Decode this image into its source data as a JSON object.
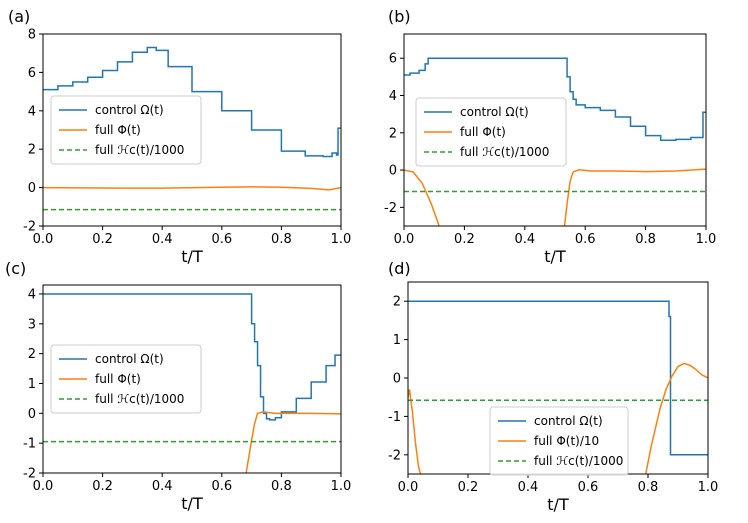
{
  "colors": {
    "control": "#1f77b4",
    "full": "#ff7f0e",
    "hamiltonian": "#2ca02c"
  },
  "chart_data": [
    {
      "panel_label": "(a)",
      "type": "line",
      "xlabel": "t/T",
      "xlim": [
        0,
        1
      ],
      "ylim": [
        -2,
        8
      ],
      "xticks": [
        "0.0",
        "0.2",
        "0.4",
        "0.6",
        "0.8",
        "1.0"
      ],
      "yticks": [
        "-2",
        "0",
        "2",
        "4",
        "6",
        "8"
      ],
      "legend_position": "lower-left",
      "series": [
        {
          "name": "control Ω(t)",
          "style": "step",
          "color": "#1f77b4",
          "x": [
            0,
            0.05,
            0.1,
            0.15,
            0.2,
            0.25,
            0.3,
            0.35,
            0.38,
            0.42,
            0.5,
            0.6,
            0.7,
            0.8,
            0.88,
            0.94,
            0.97,
            0.985,
            0.99,
            1.0
          ],
          "y": [
            5.1,
            5.3,
            5.5,
            5.75,
            6.1,
            6.55,
            7.05,
            7.3,
            7.15,
            6.3,
            5.0,
            4.0,
            3.0,
            1.9,
            1.65,
            1.62,
            1.8,
            1.7,
            3.1,
            3.1
          ]
        },
        {
          "name": "full Φ(t)",
          "style": "line",
          "color": "#ff7f0e",
          "x": [
            0,
            0.2,
            0.4,
            0.6,
            0.7,
            0.8,
            0.9,
            0.96,
            1.0
          ],
          "y": [
            0.0,
            -0.02,
            -0.03,
            0.02,
            0.04,
            0.02,
            -0.04,
            -0.12,
            0.0
          ]
        },
        {
          "name": "full ℋc(t)/1000",
          "style": "dashed",
          "color": "#2ca02c",
          "x": [
            0,
            1
          ],
          "y": [
            -1.15,
            -1.15
          ]
        }
      ]
    },
    {
      "panel_label": "(b)",
      "type": "line",
      "xlabel": "t/T",
      "xlim": [
        0,
        1
      ],
      "ylim": [
        -3,
        7.3
      ],
      "xticks": [
        "0.0",
        "0.2",
        "0.4",
        "0.6",
        "0.8",
        "1.0"
      ],
      "yticks": [
        "-2",
        "0",
        "2",
        "4",
        "6"
      ],
      "legend_position": "center-right",
      "series": [
        {
          "name": "control Ω(t)",
          "style": "step",
          "color": "#1f77b4",
          "x": [
            0,
            0.02,
            0.05,
            0.07,
            0.08,
            0.53,
            0.54,
            0.55,
            0.56,
            0.57,
            0.6,
            0.65,
            0.7,
            0.75,
            0.8,
            0.85,
            0.9,
            0.95,
            0.99,
            1.0
          ],
          "y": [
            5.1,
            5.2,
            5.35,
            5.7,
            6.0,
            6.0,
            5.0,
            4.2,
            3.8,
            3.5,
            3.35,
            3.2,
            2.85,
            2.35,
            1.85,
            1.6,
            1.65,
            1.75,
            3.1,
            3.1
          ]
        },
        {
          "name": "full Φ(t)",
          "style": "line",
          "color": "#ff7f0e",
          "x": [
            0,
            0.03,
            0.06,
            0.09,
            0.11,
            0.12
          ],
          "y": [
            0.0,
            -0.1,
            -0.7,
            -1.8,
            -2.7,
            -3.2
          ],
          "x2": [
            0.53,
            0.54,
            0.55,
            0.56,
            0.58,
            0.62,
            0.7,
            0.8,
            0.9,
            1.0
          ],
          "y2": [
            -3.2,
            -1.8,
            -0.6,
            -0.1,
            0.02,
            -0.05,
            -0.05,
            -0.08,
            -0.05,
            0.05
          ]
        },
        {
          "name": "full ℋc(t)/1000",
          "style": "dashed",
          "color": "#2ca02c",
          "x": [
            0,
            1
          ],
          "y": [
            -1.15,
            -1.15
          ]
        }
      ]
    },
    {
      "panel_label": "(c)",
      "type": "line",
      "xlabel": "t/T",
      "xlim": [
        0,
        1
      ],
      "ylim": [
        -2,
        4.3
      ],
      "xticks": [
        "0.0",
        "0.2",
        "0.4",
        "0.6",
        "0.8",
        "1.0"
      ],
      "yticks": [
        "-2",
        "-1",
        "0",
        "1",
        "2",
        "3",
        "4"
      ],
      "legend_position": "center-left",
      "series": [
        {
          "name": "control Ω(t)",
          "style": "step",
          "color": "#1f77b4",
          "x": [
            0,
            0.695,
            0.7,
            0.71,
            0.72,
            0.73,
            0.74,
            0.75,
            0.76,
            0.78,
            0.8,
            0.85,
            0.9,
            0.95,
            0.98,
            1.0
          ],
          "y": [
            4.0,
            4.0,
            3.0,
            2.4,
            1.6,
            0.55,
            0.0,
            -0.18,
            -0.22,
            -0.15,
            0.05,
            0.5,
            1.05,
            1.6,
            1.95,
            1.98
          ]
        },
        {
          "name": "full Φ(t)",
          "style": "line",
          "color": "#ff7f0e",
          "x": [
            0.68,
            0.69,
            0.7,
            0.71,
            0.72,
            0.74,
            0.78,
            0.85,
            0.9,
            1.0
          ],
          "y": [
            -2.1,
            -1.5,
            -0.9,
            -0.35,
            0.0,
            0.05,
            0.0,
            0.0,
            0.0,
            -0.02
          ]
        },
        {
          "name": "full ℋc(t)/1000",
          "style": "dashed",
          "color": "#2ca02c",
          "x": [
            0,
            1
          ],
          "y": [
            -0.95,
            -0.95
          ]
        }
      ]
    },
    {
      "panel_label": "(d)",
      "type": "line",
      "xlabel": "t/T",
      "xlim": [
        0,
        1
      ],
      "ylim": [
        -2.5,
        2.5
      ],
      "xticks": [
        "0.0",
        "0.2",
        "0.4",
        "0.6",
        "0.8",
        "1.0"
      ],
      "yticks": [
        "-2",
        "-1",
        "0",
        "1",
        "2"
      ],
      "legend_position": "bottom-center",
      "series": [
        {
          "name": "control Ω(t)",
          "style": "step",
          "color": "#1f77b4",
          "x": [
            0,
            0.86,
            0.87,
            0.875,
            1.0
          ],
          "y": [
            2.0,
            2.0,
            1.6,
            -2.0,
            -2.0
          ]
        },
        {
          "name": "full Φ(t)/10",
          "style": "line",
          "color": "#ff7f0e",
          "x": [
            0.0,
            0.005,
            0.015,
            0.025,
            0.035,
            0.045
          ],
          "y": [
            -0.5,
            -0.3,
            -0.9,
            -1.7,
            -2.3,
            -2.6
          ],
          "x2": [
            0.79,
            0.81,
            0.84,
            0.86,
            0.88,
            0.9,
            0.92,
            0.94,
            0.96,
            0.98,
            1.0
          ],
          "y2": [
            -2.6,
            -1.8,
            -0.8,
            -0.3,
            0.05,
            0.3,
            0.38,
            0.33,
            0.22,
            0.08,
            0.0
          ]
        },
        {
          "name": "full ℋc(t)/1000",
          "style": "dashed",
          "color": "#2ca02c",
          "x": [
            0,
            1
          ],
          "y": [
            -0.58,
            -0.58
          ]
        }
      ]
    }
  ]
}
